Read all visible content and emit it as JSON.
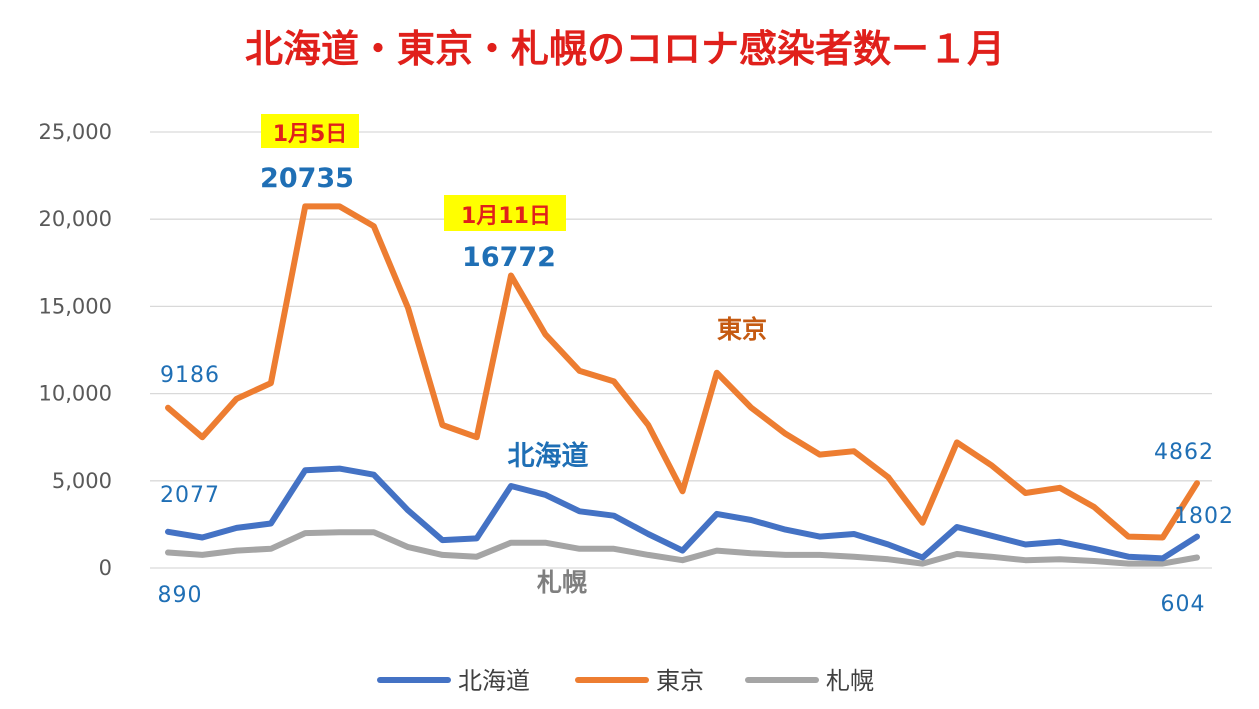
{
  "chart_data": {
    "type": "line",
    "title": "北海道・東京・札幌のコロナ感染者数ー１月",
    "xlabel": "",
    "ylabel": "",
    "ylim": [
      0,
      25000
    ],
    "yticks": [
      0,
      5000,
      10000,
      15000,
      20000,
      25000
    ],
    "ytick_labels": [
      "0",
      "5,000",
      "10,000",
      "15,000",
      "20,000",
      "25,000"
    ],
    "x": [
      1,
      2,
      3,
      4,
      5,
      6,
      7,
      8,
      9,
      10,
      11,
      12,
      13,
      14,
      15,
      16,
      17,
      18,
      19,
      20,
      21,
      22,
      23,
      24,
      25,
      26,
      27,
      28,
      29,
      30,
      31
    ],
    "grid": true,
    "legend_position": "bottom",
    "series": [
      {
        "name": "北海道",
        "color": "#4472c4",
        "values": [
          2077,
          1750,
          2300,
          2550,
          5600,
          5700,
          5350,
          3300,
          1600,
          1700,
          4700,
          4200,
          3250,
          3000,
          1950,
          1000,
          3100,
          2750,
          2200,
          1800,
          1950,
          1350,
          600,
          2350,
          1850,
          1350,
          1500,
          1100,
          650,
          550,
          1802
        ]
      },
      {
        "name": "東京",
        "color": "#ed7d31",
        "values": [
          9186,
          7500,
          9700,
          10600,
          20735,
          20735,
          19600,
          14900,
          8200,
          7500,
          16772,
          13400,
          11300,
          10700,
          8200,
          4400,
          11200,
          9200,
          7700,
          6500,
          6700,
          5200,
          2600,
          7200,
          5900,
          4300,
          4600,
          3500,
          1800,
          1750,
          4862
        ]
      },
      {
        "name": "札幌",
        "color": "#a5a5a5",
        "values": [
          890,
          750,
          1000,
          1100,
          2000,
          2050,
          2050,
          1200,
          750,
          650,
          1450,
          1450,
          1100,
          1100,
          750,
          450,
          1000,
          850,
          750,
          750,
          650,
          500,
          250,
          800,
          650,
          450,
          500,
          400,
          250,
          250,
          604
        ]
      }
    ],
    "annotations": [
      {
        "id": "jan5-date",
        "text": "1月5日",
        "style": "date"
      },
      {
        "id": "jan5-value",
        "text": "20735",
        "style": "blue-big"
      },
      {
        "id": "jan11-date",
        "text": "1月11日",
        "style": "date"
      },
      {
        "id": "jan11-value",
        "text": "16772",
        "style": "blue-big"
      },
      {
        "id": "tokyo-start",
        "text": "9186",
        "style": "blue"
      },
      {
        "id": "hokkaido-start",
        "text": "2077",
        "style": "blue"
      },
      {
        "id": "sapporo-start",
        "text": "890",
        "style": "blue"
      },
      {
        "id": "tokyo-end",
        "text": "4862",
        "style": "blue"
      },
      {
        "id": "hokkaido-end",
        "text": "1802",
        "style": "blue"
      },
      {
        "id": "sapporo-end",
        "text": "604",
        "style": "blue"
      },
      {
        "id": "tokyo-label",
        "text": "東京",
        "style": "orange"
      },
      {
        "id": "hokkaido-label",
        "text": "北海道",
        "style": "blue-big"
      },
      {
        "id": "sapporo-label",
        "text": "札幌",
        "style": "gray"
      }
    ],
    "annotation_highlight_color": "#ffff00"
  }
}
